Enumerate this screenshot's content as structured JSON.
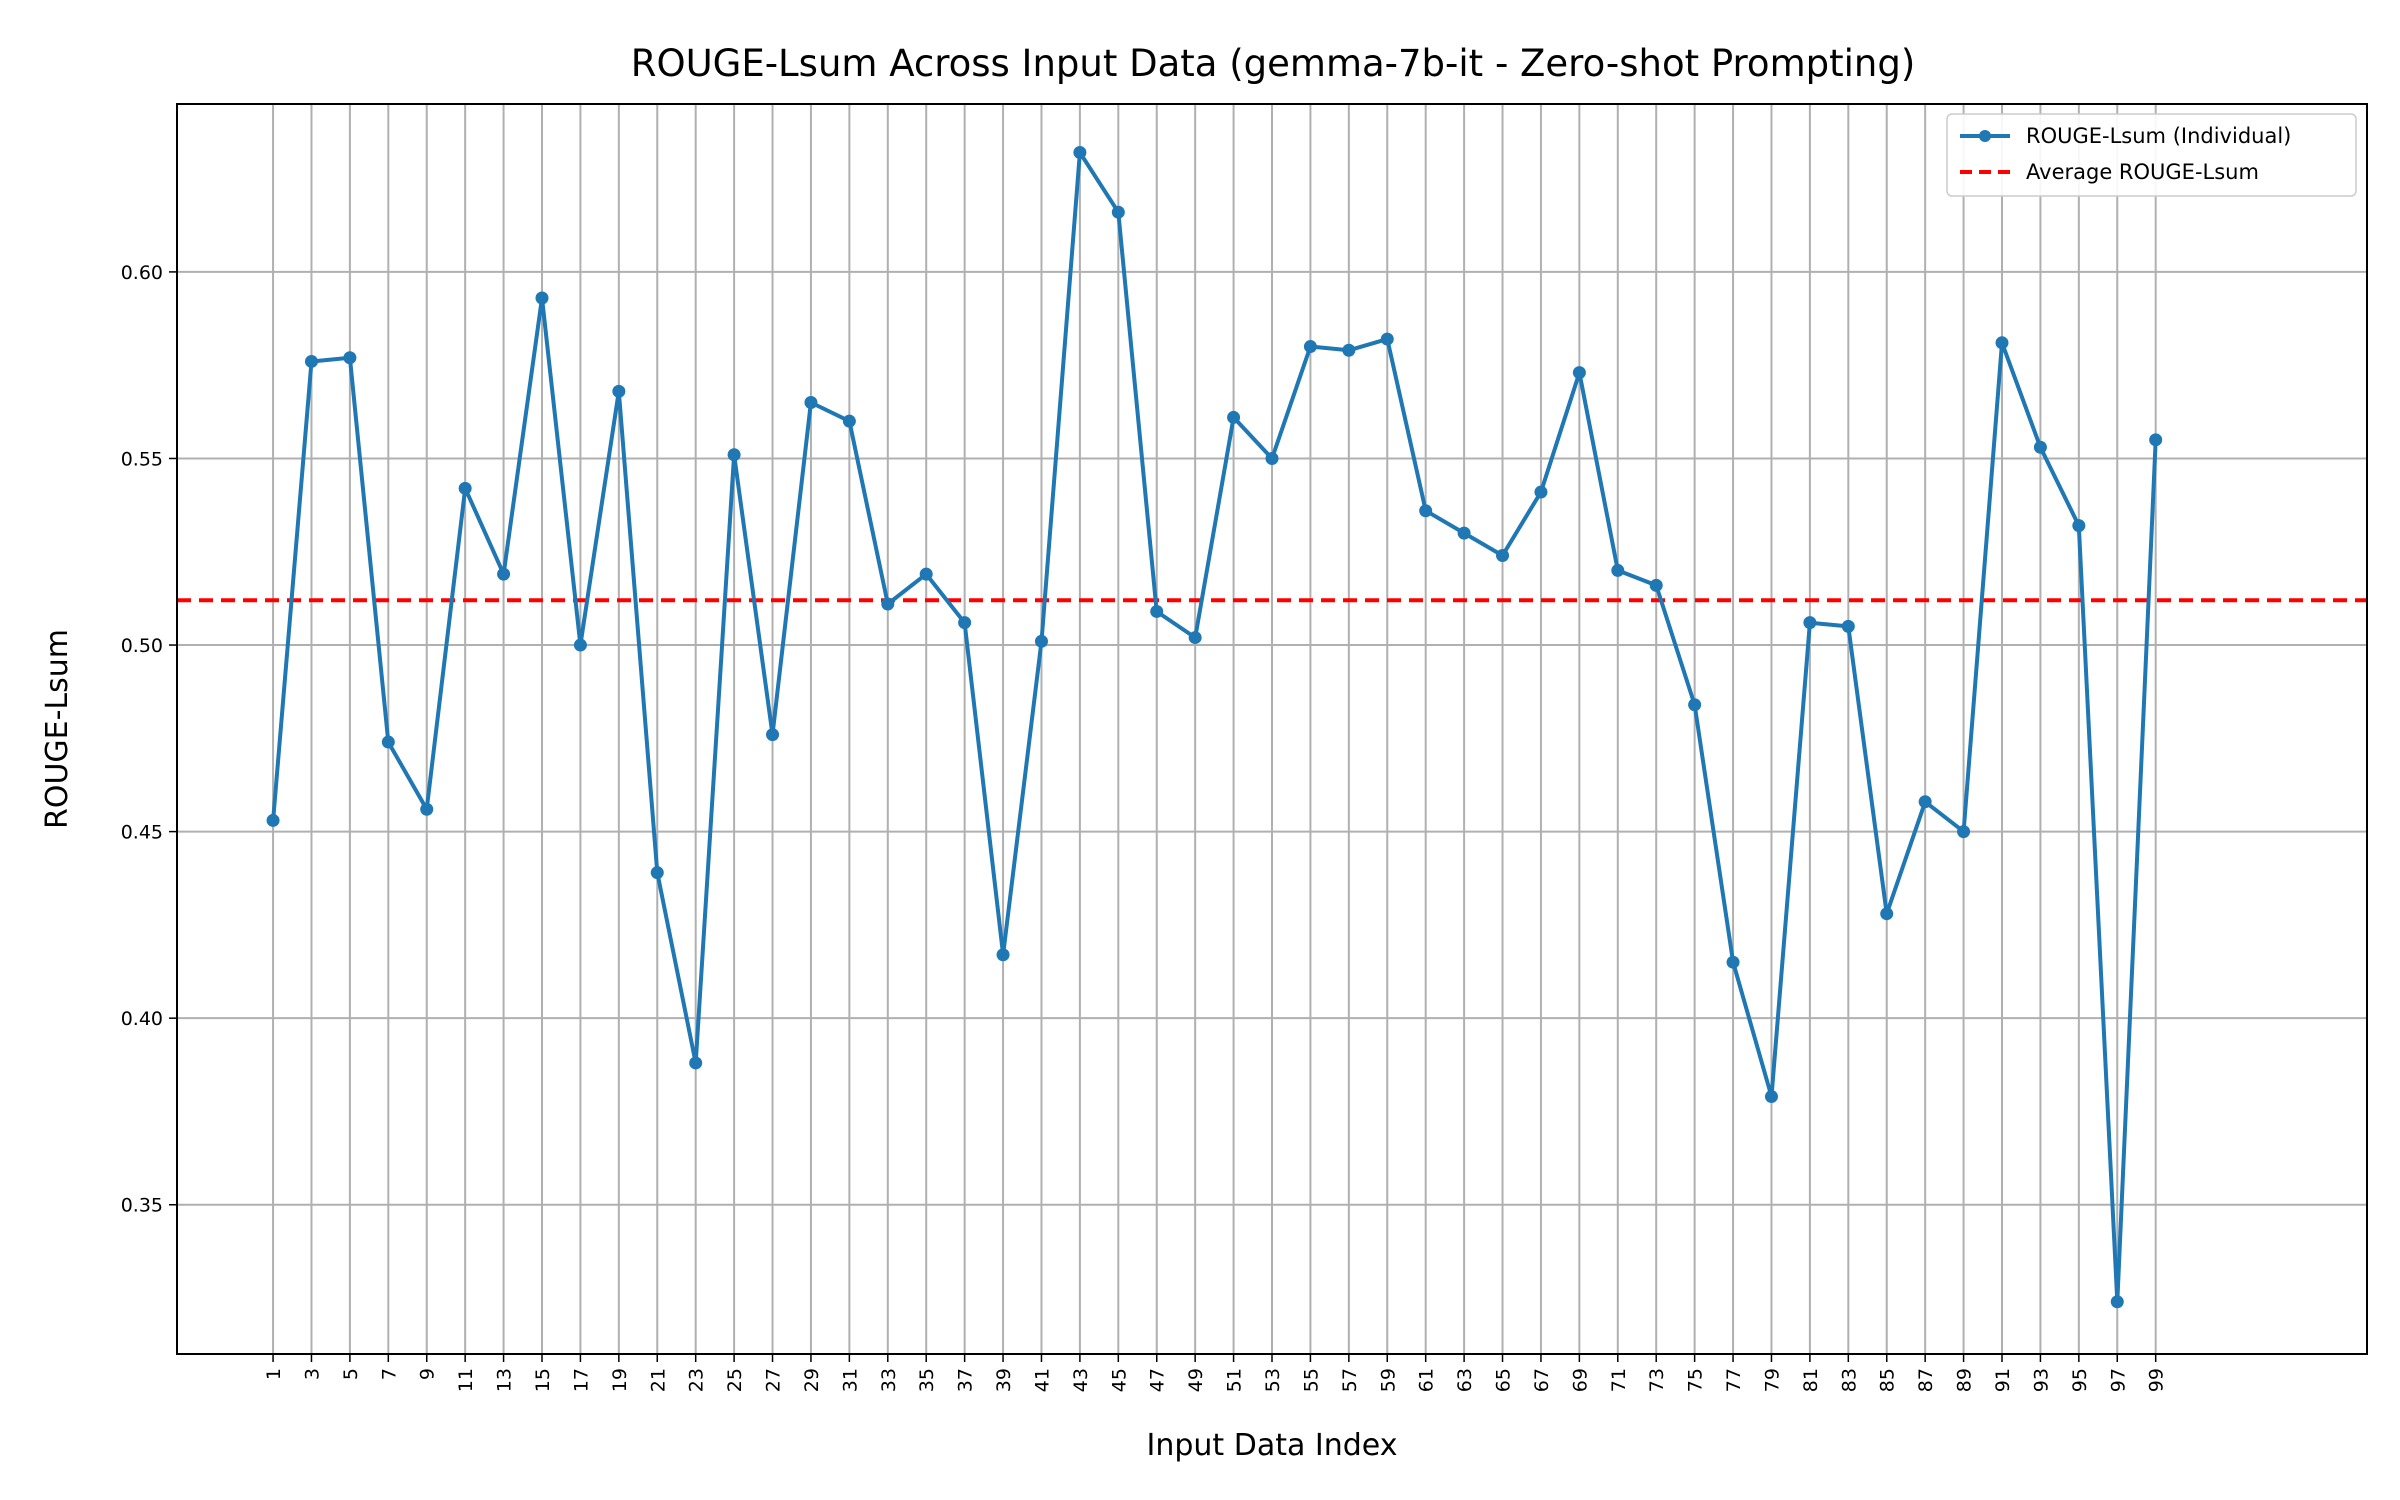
{
  "chart_data": {
    "type": "line",
    "title": "ROUGE-Lsum Across Input Data (gemma-7b-it - Zero-shot Prompting)",
    "xlabel": "Input Data Index",
    "ylabel": "ROUGE-Lsum",
    "ylim": [
      0.31,
      0.645
    ],
    "xlim": [
      -4,
      110
    ],
    "grid": true,
    "legend_position": "top-right",
    "x": [
      1,
      3,
      5,
      7,
      9,
      11,
      13,
      15,
      17,
      19,
      21,
      23,
      25,
      27,
      29,
      31,
      33,
      35,
      37,
      39,
      41,
      43,
      45,
      47,
      49,
      51,
      53,
      55,
      57,
      59,
      61,
      63,
      65,
      67,
      69,
      71,
      73,
      75,
      77,
      79,
      81,
      83,
      85,
      87,
      89,
      91,
      93,
      95,
      97,
      99
    ],
    "x_ticks": [
      "1",
      "3",
      "5",
      "7",
      "9",
      "11",
      "13",
      "15",
      "17",
      "19",
      "21",
      "23",
      "25",
      "27",
      "29",
      "31",
      "33",
      "35",
      "37",
      "39",
      "41",
      "43",
      "45",
      "47",
      "49",
      "51",
      "53",
      "55",
      "57",
      "59",
      "61",
      "63",
      "65",
      "67",
      "69",
      "71",
      "73",
      "75",
      "77",
      "79",
      "81",
      "83",
      "85",
      "87",
      "89",
      "91",
      "93",
      "95",
      "97",
      "99"
    ],
    "y_ticks": [
      {
        "value": 0.35,
        "label": "0.35"
      },
      {
        "value": 0.4,
        "label": "0.40"
      },
      {
        "value": 0.45,
        "label": "0.45"
      },
      {
        "value": 0.5,
        "label": "0.50"
      },
      {
        "value": 0.55,
        "label": "0.55"
      },
      {
        "value": 0.6,
        "label": "0.60"
      }
    ],
    "series": [
      {
        "name": "ROUGE-Lsum (Individual)",
        "color": "#1f77b4",
        "values": [
          0.453,
          0.576,
          0.577,
          0.474,
          0.456,
          0.542,
          0.519,
          0.593,
          0.5,
          0.568,
          0.439,
          0.388,
          0.551,
          0.476,
          0.565,
          0.56,
          0.511,
          0.519,
          0.506,
          0.417,
          0.501,
          0.632,
          0.616,
          0.509,
          0.502,
          0.561,
          0.55,
          0.58,
          0.579,
          0.582,
          0.536,
          0.53,
          0.524,
          0.541,
          0.573,
          0.52,
          0.516,
          0.484,
          0.415,
          0.379,
          0.506,
          0.505,
          0.428,
          0.458,
          0.45,
          0.581,
          0.553,
          0.532,
          0.324,
          0.555
        ]
      }
    ],
    "average": {
      "name": "Average ROUGE-Lsum",
      "value": 0.512,
      "color": "#ff0000"
    }
  }
}
